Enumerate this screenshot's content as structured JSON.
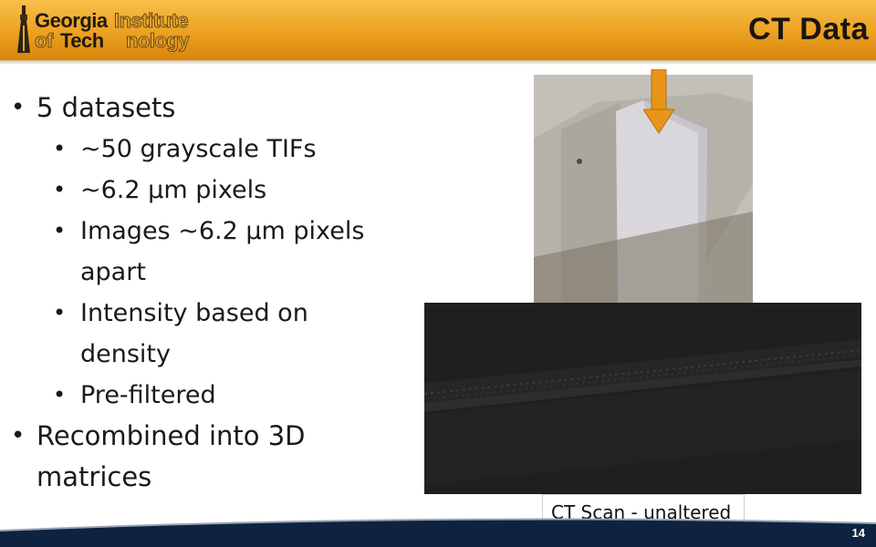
{
  "header": {
    "logo": {
      "line1_dark": "Georgia",
      "line1_outline": "Institute",
      "line2_outline_a": "of",
      "line2_dark": "Tech",
      "line2_outline_b": "nology"
    },
    "title": "CT Data"
  },
  "bullets": [
    {
      "level": 1,
      "text": "5 datasets"
    },
    {
      "level": 2,
      "text": "~50 grayscale TIFs"
    },
    {
      "level": 2,
      "text": "~6.2 µm pixels"
    },
    {
      "level": 2,
      "text": "Images ~6.2 µm pixels"
    },
    {
      "level": 2,
      "text": "apart",
      "continuation": true
    },
    {
      "level": 2,
      "text": "Intensity based on"
    },
    {
      "level": 2,
      "text": "density",
      "continuation": true
    },
    {
      "level": 2,
      "text": "Pre-filtered"
    },
    {
      "level": 1,
      "text": "Recombined into 3D"
    },
    {
      "level": 1,
      "text": "matrices",
      "continuation": true
    }
  ],
  "caption": "CT Scan - unaltered",
  "page_number": "14",
  "colors": {
    "header_orange": "#eca020",
    "arrow_orange": "#e89418",
    "footer_navy": "#0d2340",
    "ct_background": "#1e1e1e"
  }
}
